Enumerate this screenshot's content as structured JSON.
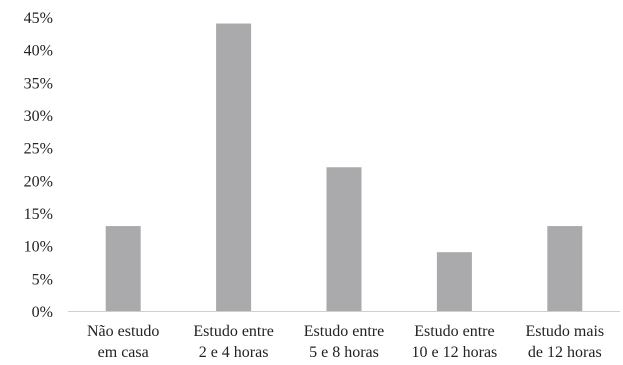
{
  "chart_data": {
    "type": "bar",
    "title": "",
    "xlabel": "",
    "ylabel": "",
    "categories": [
      [
        "Não estudo",
        "em casa"
      ],
      [
        "Estudo entre",
        "2 e 4 horas"
      ],
      [
        "Estudo entre",
        "5 e 8 horas"
      ],
      [
        "Estudo entre",
        "10 e 12 horas"
      ],
      [
        "Estudo mais",
        "de 12 horas"
      ]
    ],
    "values": [
      13,
      44,
      22,
      9,
      13
    ],
    "ylim": [
      0,
      45
    ],
    "y_ticks": [
      "0%",
      "5%",
      "10%",
      "15%",
      "20%",
      "25%",
      "30%",
      "35%",
      "40%",
      "45%"
    ],
    "bar_color": "#aaaaad",
    "axis_color": "#cfcfcf",
    "grid": false,
    "legend": "none"
  }
}
